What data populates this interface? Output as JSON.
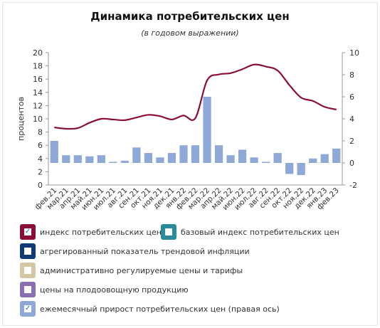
{
  "chart_data": {
    "type": "bar+line",
    "title": "Динамика потребительских цен",
    "subtitle": "(в годовом выражении)",
    "ylabel": "процентов",
    "ylim": [
      0,
      20
    ],
    "y2lim": [
      -2,
      10
    ],
    "yticks": [
      "0",
      "2",
      "4",
      "6",
      "8",
      "10",
      "12",
      "14",
      "16",
      "18",
      "20"
    ],
    "y2ticks": [
      "-2",
      "0",
      "2",
      "4",
      "6",
      "8",
      "10"
    ],
    "categories": [
      "фев.21",
      "мар.21",
      "апр.21",
      "май.21",
      "июн.21",
      "июл.21",
      "авг.21",
      "сен.21",
      "окт.21",
      "ноя.21",
      "дек.21",
      "янв.22",
      "фев.22",
      "мар.22",
      "апр.22",
      "май.22",
      "июн.22",
      "июл.22",
      "авг.22",
      "сен.22",
      "окт.22",
      "ноя.22",
      "дек.22",
      "янв.23",
      "фев.23"
    ],
    "series": [
      {
        "name": "индекс потребительских цен",
        "type": "line",
        "axis": "left",
        "color": "#8b0e3a",
        "values": [
          8.7,
          8.5,
          8.6,
          9.4,
          10.0,
          9.9,
          9.8,
          10.2,
          10.6,
          10.4,
          9.9,
          10.5,
          10.1,
          15.8,
          16.7,
          16.9,
          17.5,
          18.2,
          17.9,
          17.3,
          15.1,
          13.2,
          12.7,
          11.8,
          11.4
        ]
      },
      {
        "name": "ежемесячный прирост потребительских цен (правая ось)",
        "type": "bar",
        "axis": "right",
        "color": "#8ea8d8",
        "values": [
          2.0,
          0.7,
          0.7,
          0.6,
          0.7,
          0.1,
          0.2,
          1.4,
          0.9,
          0.5,
          0.9,
          1.6,
          1.6,
          6.0,
          1.6,
          0.7,
          1.2,
          0.5,
          0.1,
          0.9,
          -1.0,
          -1.1,
          0.4,
          0.8,
          1.3
        ]
      }
    ]
  },
  "legend": [
    {
      "label": "индекс потребительских цен",
      "color": "#8b0e3a",
      "checked": true
    },
    {
      "label": "базовый индекс потребительских цен",
      "color": "#2b8a9a",
      "checked": false
    },
    {
      "label": "агрегированный показатель трендовой инфляции",
      "color": "#0f3d73",
      "checked": false
    },
    {
      "label": "административно регулируемые цены и тарифы",
      "color": "#d4c7a6",
      "checked": false
    },
    {
      "label": "цены на плодоовощную продукцию",
      "color": "#8b6fb3",
      "checked": false
    },
    {
      "label": "ежемесячный прирост потребительских цен (правая ось)",
      "color": "#8ea8d8",
      "checked": true
    }
  ]
}
